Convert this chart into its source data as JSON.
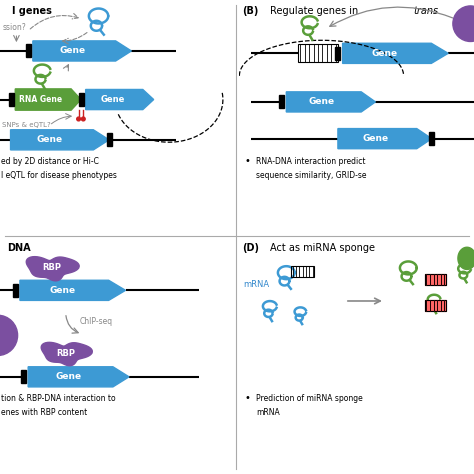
{
  "gene_color": "#3d9ad4",
  "lncrna_color": "#5a9e3a",
  "rbp_color": "#7b4fa0",
  "line_color": "#111111",
  "arrow_color": "#888888",
  "red_color": "#cc2222",
  "white": "#ffffff",
  "bg_color": "#ffffff",
  "text_A1": "l genes",
  "text_A2": "ssion?",
  "text_A3": "SNPs & eQTL?",
  "text_A4": "ed by 2D distance or Hi-C",
  "text_A5": "l eQTL for disease phenotypes",
  "text_B_bold": "(B)",
  "text_B_reg": " Regulate genes in ",
  "text_B_ital": "trans",
  "text_B1": "RNA-DNA interaction predict",
  "text_B2": "sequence similarity, GRID-se",
  "text_C": "DNA",
  "text_C1": "ChIP-seq",
  "text_C2": "tion & RBP-DNA interaction to",
  "text_C3": "enes with RBP content",
  "text_D_bold": "(D)",
  "text_D_reg": " Act as miRNA sponge",
  "text_D_mrna": "mRNA",
  "text_D1": "Prediction of miRNA sponge",
  "text_D2": "mRNA",
  "bullet": "•"
}
